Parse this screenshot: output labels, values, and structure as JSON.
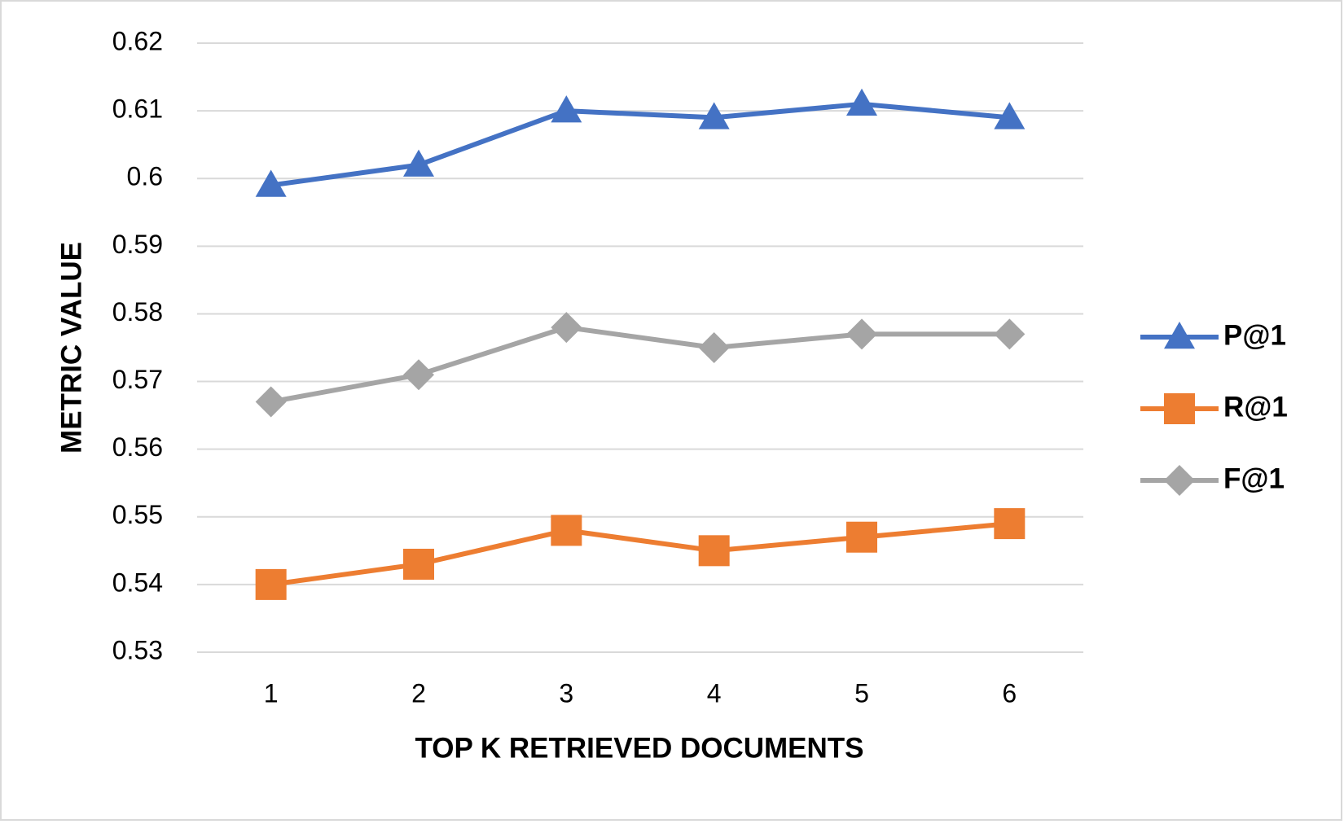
{
  "chart_data": {
    "type": "line",
    "x_label": "TOP K RETRIEVED DOCUMENTS",
    "y_label": "METRIC VALUE",
    "categories": [
      "1",
      "2",
      "3",
      "4",
      "5",
      "6"
    ],
    "series": [
      {
        "name": "P@1",
        "color": "#4472c4",
        "marker": "triangle",
        "values": [
          0.599,
          0.602,
          0.61,
          0.609,
          0.611,
          0.609
        ]
      },
      {
        "name": "R@1",
        "color": "#ed7d31",
        "marker": "square",
        "values": [
          0.54,
          0.543,
          0.548,
          0.545,
          0.547,
          0.549
        ]
      },
      {
        "name": "F@1",
        "color": "#a5a5a5",
        "marker": "diamond",
        "values": [
          0.567,
          0.571,
          0.578,
          0.575,
          0.577,
          0.577
        ]
      }
    ],
    "ylim": [
      0.53,
      0.62
    ],
    "yticks": [
      0.53,
      0.54,
      0.55,
      0.56,
      0.57,
      0.58,
      0.59,
      0.6,
      0.61,
      0.62
    ],
    "grid": true,
    "legend": "right"
  }
}
